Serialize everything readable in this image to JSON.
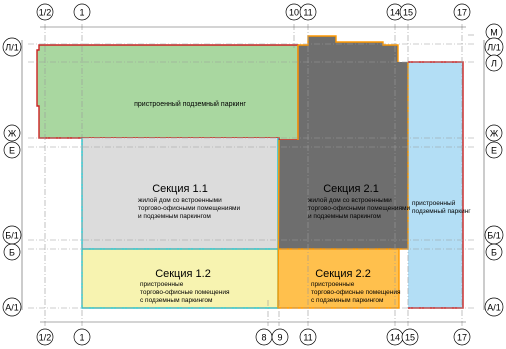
{
  "axes": {
    "columns": {
      "c12": "1/2",
      "c1": "1",
      "c8": "8",
      "c9": "9",
      "c10": "10",
      "c11": "11",
      "c14": "14",
      "c15": "15",
      "c17": "17"
    },
    "rows": {
      "rM": "М",
      "rL1": "Л/1",
      "rL": "Л",
      "rZh": "Ж",
      "rE": "Е",
      "rB1": "Б/1",
      "rB": "Б",
      "rA1": "А/1"
    }
  },
  "zones": {
    "parking": {
      "text": "пристроенный подземный паркинг",
      "color": "#a9d7a0"
    },
    "s11": {
      "title": "Секция 1.1",
      "line1": "жилой дом со встроенными",
      "line2": "торгово-офисными помещениями",
      "line3": "и подземным паркингом",
      "color": "#dcdcdc"
    },
    "s21": {
      "title": "Секция 2.1",
      "line1": "жилой дом со встроенными",
      "line2": "торгово-офисными помещениями",
      "line3": "и подземным паркингом",
      "color": "#6e6e6e"
    },
    "s12": {
      "title": "Секция 1.2",
      "line1": "пристроенные",
      "line2": "торгово-офисные помещения",
      "line3": "с подземным паркингом",
      "color": "#f7f3b0"
    },
    "s22": {
      "title": "Секция 2.2",
      "line1": "пристроенные",
      "line2": "торгово-офисные помещения",
      "line3": "с подземным паркингом",
      "color": "#ffc04d"
    },
    "blue": {
      "line1": "пристроенный",
      "line2": "подземный паркинг",
      "color": "#b3def5"
    }
  }
}
